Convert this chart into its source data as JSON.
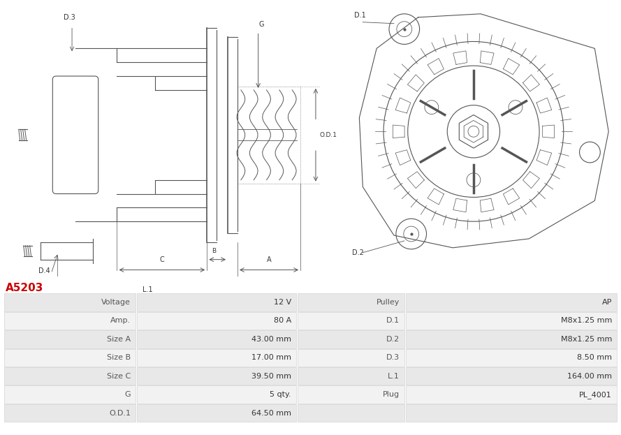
{
  "title": "A5203",
  "title_color": "#cc0000",
  "table_data": [
    [
      "Voltage",
      "12 V",
      "Pulley",
      "AP"
    ],
    [
      "Amp.",
      "80 A",
      "D.1",
      "M8x1.25 mm"
    ],
    [
      "Size A",
      "43.00 mm",
      "D.2",
      "M8x1.25 mm"
    ],
    [
      "Size B",
      "17.00 mm",
      "D.3",
      "8.50 mm"
    ],
    [
      "Size C",
      "39.50 mm",
      "L.1",
      "164.00 mm"
    ],
    [
      "G",
      "5 qty.",
      "Plug",
      "PL_4001"
    ],
    [
      "O.D.1",
      "64.50 mm",
      "",
      ""
    ]
  ],
  "row_bg_odd": "#e8e8e8",
  "row_bg_even": "#f2f2f2",
  "background_color": "#ffffff",
  "line_color": "#555555",
  "label_color": "#555555",
  "title_fontsize": 11,
  "table_fontsize": 8
}
